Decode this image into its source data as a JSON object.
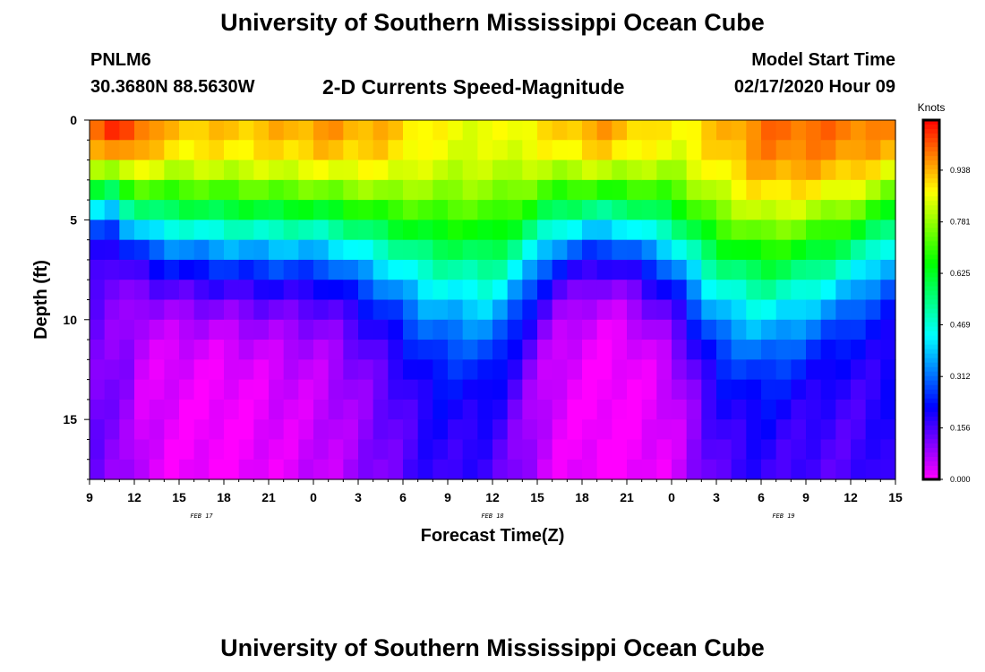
{
  "header": {
    "title": "University of Southern Mississippi Ocean Cube",
    "station_id": "PNLM6",
    "station_coords": "30.3680N 88.5630W",
    "subtitle": "2-D Currents Speed-Magnitude",
    "model_start_label": "Model Start Time",
    "model_start_value": "02/17/2020 Hour 09"
  },
  "footer": {
    "title": "University of Southern Mississippi Ocean Cube"
  },
  "chart_data": {
    "type": "heatmap",
    "title": "2-D Currents Speed-Magnitude",
    "xlabel": "Forecast Time(Z)",
    "ylabel": "Depth (ft)",
    "x_tick_labels": [
      "9",
      "12",
      "15",
      "18",
      "21",
      "0",
      "3",
      "6",
      "9",
      "12",
      "15",
      "18",
      "21",
      "0",
      "3",
      "6",
      "9",
      "12",
      "15"
    ],
    "x_range_hours": [
      0,
      54
    ],
    "date_labels": [
      {
        "text": "FEB 17",
        "hour": 7.5
      },
      {
        "text": "FEB 18",
        "hour": 27
      },
      {
        "text": "FEB 19",
        "hour": 46.5
      }
    ],
    "y_ticks": [
      0,
      5,
      10,
      15
    ],
    "y_range_ft": [
      0,
      18
    ],
    "y_inverted": true,
    "colorbar": {
      "unit": "Knots",
      "range": [
        0,
        1.09
      ],
      "ticks": [
        0.0,
        0.156,
        0.312,
        0.469,
        0.625,
        0.781,
        0.938
      ],
      "tick_labels": [
        "0.000",
        "0.156",
        "0.312",
        "0.469",
        "0.625",
        "0.781",
        "0.938"
      ],
      "colormap": "rainbow (magenta-blue-cyan-green-yellow-orange-red)"
    },
    "grid": false,
    "speed_profile_note_hours": [
      0,
      1,
      2,
      3,
      5,
      9,
      12,
      16,
      20,
      23,
      27,
      31,
      34,
      36,
      39,
      42,
      45,
      47,
      51,
      54
    ],
    "surface_speed_knots": [
      0.98,
      1.03,
      1.06,
      1.03,
      0.93,
      0.92,
      0.93,
      0.96,
      0.93,
      0.87,
      0.85,
      0.9,
      0.96,
      0.93,
      0.87,
      0.92,
      0.99,
      1.0,
      0.99,
      0.96
    ],
    "decay_depth_ft": [
      5.5,
      4.5,
      5.0,
      6.0,
      7.0,
      7.5,
      7.5,
      7.3,
      8.3,
      9.5,
      10.5,
      7.2,
      6.5,
      6.8,
      8.0,
      10.0,
      10.3,
      10.0,
      8.5,
      6.5
    ],
    "bottom_speed_knots": [
      0.16,
      0.08,
      0.13,
      0.05,
      0.02,
      0.0,
      0.02,
      0.05,
      0.12,
      0.18,
      0.15,
      0.03,
      0.0,
      0.0,
      0.03,
      0.14,
      0.17,
      0.15,
      0.15,
      0.2
    ]
  }
}
